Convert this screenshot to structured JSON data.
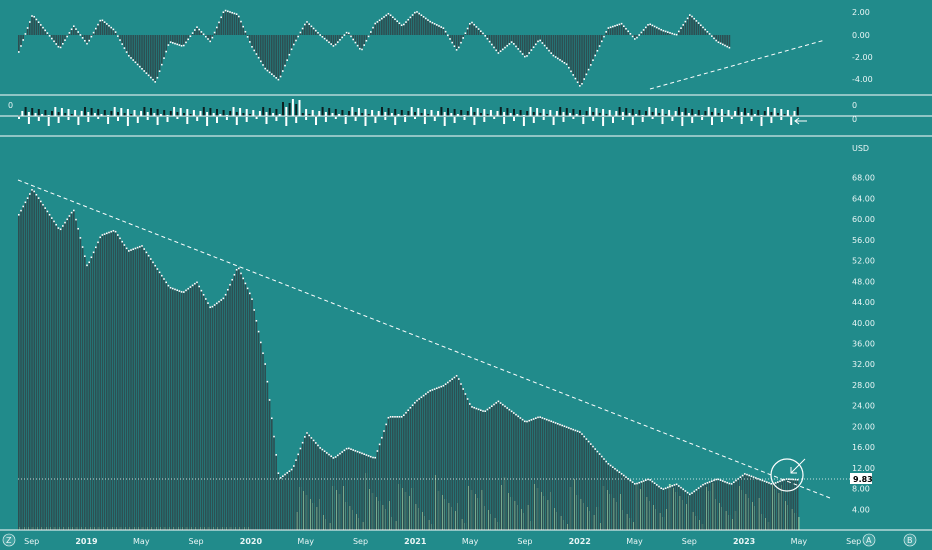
{
  "colors": {
    "background": "#218b8b",
    "bar_fill": "#2d4f52",
    "bar_highlight": "#ffffff",
    "volume": "#a6e8b8",
    "trendline": "#ffffff",
    "price_label_bg": "#ffffff",
    "price_label_text": "#000000"
  },
  "indicators": {
    "oscillator": {
      "ticks": [
        "2.00",
        "0.00",
        "-2.00",
        "-4.00"
      ],
      "tick_values": [
        2,
        0,
        -2,
        -4
      ],
      "ylim": [
        -4.8,
        2.6
      ]
    },
    "volume_delta": {
      "left_label": "0",
      "right_labels": [
        "0",
        "0"
      ]
    },
    "arrow_icon": "left-arrow-icon"
  },
  "price_axis": {
    "currency": "USD",
    "ticks": [
      "68.00",
      "64.00",
      "60.00",
      "56.00",
      "52.00",
      "48.00",
      "44.00",
      "40.00",
      "36.00",
      "32.00",
      "28.00",
      "24.00",
      "20.00",
      "16.00",
      "12.00",
      "8.00",
      "4.00"
    ],
    "current_price": "9.83"
  },
  "time_axis": {
    "ticks": [
      "Sep",
      "2019",
      "May",
      "Sep",
      "2020",
      "May",
      "Sep",
      "2021",
      "May",
      "Sep",
      "2022",
      "May",
      "Sep",
      "2023",
      "May",
      "Sep"
    ]
  },
  "corner_badges": {
    "left": "Z",
    "a": "A",
    "b": "B"
  },
  "chart_data": [
    {
      "type": "bar",
      "name": "price",
      "x_range": [
        "2018-08",
        "2023-05"
      ],
      "ylim": [
        0,
        72
      ],
      "anchors": [
        {
          "date": "2018-08",
          "value": 61
        },
        {
          "date": "2018-09",
          "value": 66
        },
        {
          "date": "2018-10",
          "value": 62
        },
        {
          "date": "2018-11",
          "value": 58
        },
        {
          "date": "2018-12",
          "value": 62
        },
        {
          "date": "2019-01",
          "value": 51
        },
        {
          "date": "2019-02",
          "value": 57
        },
        {
          "date": "2019-03",
          "value": 58
        },
        {
          "date": "2019-04",
          "value": 54
        },
        {
          "date": "2019-05",
          "value": 55
        },
        {
          "date": "2019-06",
          "value": 51
        },
        {
          "date": "2019-07",
          "value": 47
        },
        {
          "date": "2019-08",
          "value": 46
        },
        {
          "date": "2019-09",
          "value": 48
        },
        {
          "date": "2019-10",
          "value": 43
        },
        {
          "date": "2019-11",
          "value": 45
        },
        {
          "date": "2019-12",
          "value": 51
        },
        {
          "date": "2020-01",
          "value": 45
        },
        {
          "date": "2020-02",
          "value": 32
        },
        {
          "date": "2020-03",
          "value": 10
        },
        {
          "date": "2020-04",
          "value": 12
        },
        {
          "date": "2020-05",
          "value": 19
        },
        {
          "date": "2020-06",
          "value": 16
        },
        {
          "date": "2020-07",
          "value": 14
        },
        {
          "date": "2020-08",
          "value": 16
        },
        {
          "date": "2020-09",
          "value": 15
        },
        {
          "date": "2020-10",
          "value": 14
        },
        {
          "date": "2020-11",
          "value": 22
        },
        {
          "date": "2020-12",
          "value": 22
        },
        {
          "date": "2021-01",
          "value": 25
        },
        {
          "date": "2021-02",
          "value": 27
        },
        {
          "date": "2021-03",
          "value": 28
        },
        {
          "date": "2021-04",
          "value": 30
        },
        {
          "date": "2021-05",
          "value": 24
        },
        {
          "date": "2021-06",
          "value": 23
        },
        {
          "date": "2021-07",
          "value": 25
        },
        {
          "date": "2021-08",
          "value": 23
        },
        {
          "date": "2021-09",
          "value": 21
        },
        {
          "date": "2021-10",
          "value": 22
        },
        {
          "date": "2021-11",
          "value": 21
        },
        {
          "date": "2021-12",
          "value": 20
        },
        {
          "date": "2022-01",
          "value": 19
        },
        {
          "date": "2022-02",
          "value": 16
        },
        {
          "date": "2022-03",
          "value": 13
        },
        {
          "date": "2022-04",
          "value": 11
        },
        {
          "date": "2022-05",
          "value": 9
        },
        {
          "date": "2022-06",
          "value": 10
        },
        {
          "date": "2022-07",
          "value": 8
        },
        {
          "date": "2022-08",
          "value": 9
        },
        {
          "date": "2022-09",
          "value": 7
        },
        {
          "date": "2022-10",
          "value": 9
        },
        {
          "date": "2022-11",
          "value": 10
        },
        {
          "date": "2022-12",
          "value": 9
        },
        {
          "date": "2023-01",
          "value": 11
        },
        {
          "date": "2023-02",
          "value": 10
        },
        {
          "date": "2023-03",
          "value": 9
        },
        {
          "date": "2023-04",
          "value": 10
        },
        {
          "date": "2023-05",
          "value": 9.83
        }
      ]
    },
    {
      "type": "bar",
      "name": "oscillator",
      "ylim": [
        -4.8,
        2.6
      ],
      "anchors": [
        {
          "date": "2018-08",
          "value": -1.5
        },
        {
          "date": "2018-09",
          "value": 1.8
        },
        {
          "date": "2018-10",
          "value": 0.3
        },
        {
          "date": "2018-11",
          "value": -1.2
        },
        {
          "date": "2018-12",
          "value": 0.8
        },
        {
          "date": "2019-01",
          "value": -0.8
        },
        {
          "date": "2019-02",
          "value": 1.4
        },
        {
          "date": "2019-03",
          "value": 0.4
        },
        {
          "date": "2019-04",
          "value": -1.8
        },
        {
          "date": "2019-05",
          "value": -3.0
        },
        {
          "date": "2019-06",
          "value": -4.2
        },
        {
          "date": "2019-07",
          "value": -0.6
        },
        {
          "date": "2019-08",
          "value": -1.0
        },
        {
          "date": "2019-09",
          "value": 0.7
        },
        {
          "date": "2019-10",
          "value": -0.6
        },
        {
          "date": "2019-11",
          "value": 2.2
        },
        {
          "date": "2019-12",
          "value": 1.8
        },
        {
          "date": "2020-01",
          "value": -1.0
        },
        {
          "date": "2020-02",
          "value": -3.0
        },
        {
          "date": "2020-03",
          "value": -4.0
        },
        {
          "date": "2020-04",
          "value": -1.0
        },
        {
          "date": "2020-05",
          "value": 1.2
        },
        {
          "date": "2020-06",
          "value": 0.0
        },
        {
          "date": "2020-07",
          "value": -1.0
        },
        {
          "date": "2020-08",
          "value": 0.3
        },
        {
          "date": "2020-09",
          "value": -1.4
        },
        {
          "date": "2020-10",
          "value": 1.0
        },
        {
          "date": "2020-11",
          "value": 1.9
        },
        {
          "date": "2020-12",
          "value": 0.8
        },
        {
          "date": "2021-01",
          "value": 2.1
        },
        {
          "date": "2021-02",
          "value": 1.2
        },
        {
          "date": "2021-03",
          "value": 0.6
        },
        {
          "date": "2021-04",
          "value": -1.4
        },
        {
          "date": "2021-05",
          "value": 1.2
        },
        {
          "date": "2021-06",
          "value": 0.0
        },
        {
          "date": "2021-07",
          "value": -1.6
        },
        {
          "date": "2021-08",
          "value": -0.6
        },
        {
          "date": "2021-09",
          "value": -2.0
        },
        {
          "date": "2021-10",
          "value": -0.4
        },
        {
          "date": "2021-11",
          "value": -1.8
        },
        {
          "date": "2021-12",
          "value": -2.6
        },
        {
          "date": "2022-01",
          "value": -4.6
        },
        {
          "date": "2022-02",
          "value": -2.0
        },
        {
          "date": "2022-03",
          "value": 0.6
        },
        {
          "date": "2022-04",
          "value": 1.0
        },
        {
          "date": "2022-05",
          "value": -0.4
        },
        {
          "date": "2022-06",
          "value": 1.0
        },
        {
          "date": "2022-07",
          "value": 0.4
        },
        {
          "date": "2022-08",
          "value": 0.0
        },
        {
          "date": "2022-09",
          "value": 1.8
        },
        {
          "date": "2022-10",
          "value": 0.6
        },
        {
          "date": "2022-11",
          "value": -0.6
        },
        {
          "date": "2022-12",
          "value": -1.2
        }
      ]
    }
  ]
}
